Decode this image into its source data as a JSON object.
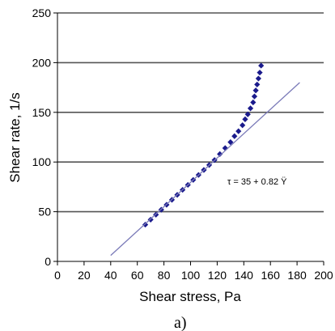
{
  "chart_data": {
    "type": "scatter",
    "xlabel": "Shear stress, Pa",
    "ylabel": "Shear rate, 1/s",
    "xlim": [
      0,
      200
    ],
    "ylim": [
      0,
      250
    ],
    "x_ticks": [
      "0",
      "20",
      "40",
      "60",
      "80",
      "100",
      "120",
      "140",
      "160",
      "180",
      "200"
    ],
    "y_ticks": [
      "0",
      "50",
      "100",
      "150",
      "200",
      "250"
    ],
    "grid": "horizontal",
    "annotation": "τ = 35 + 0.82 Ÿ",
    "panel_label": "a)",
    "series": [
      {
        "type": "scatter",
        "marker": "diamond",
        "color": "#1a1a8c",
        "x": [
          66,
          70,
          74,
          78,
          82,
          86,
          90,
          94,
          98,
          102,
          106,
          110,
          114,
          118,
          122,
          126,
          130,
          133,
          136,
          139,
          141,
          143,
          145,
          147,
          148,
          149,
          150,
          151,
          152,
          153
        ],
        "y": [
          37,
          42,
          47,
          52,
          57,
          62,
          67,
          72,
          77,
          82,
          87,
          92,
          97,
          102,
          108,
          114,
          120,
          126,
          131,
          137,
          143,
          148,
          154,
          160,
          166,
          172,
          178,
          184,
          190,
          197
        ]
      },
      {
        "type": "line",
        "color": "#7a7ab8",
        "x": [
          40,
          182
        ],
        "y": [
          6,
          180
        ]
      }
    ]
  }
}
